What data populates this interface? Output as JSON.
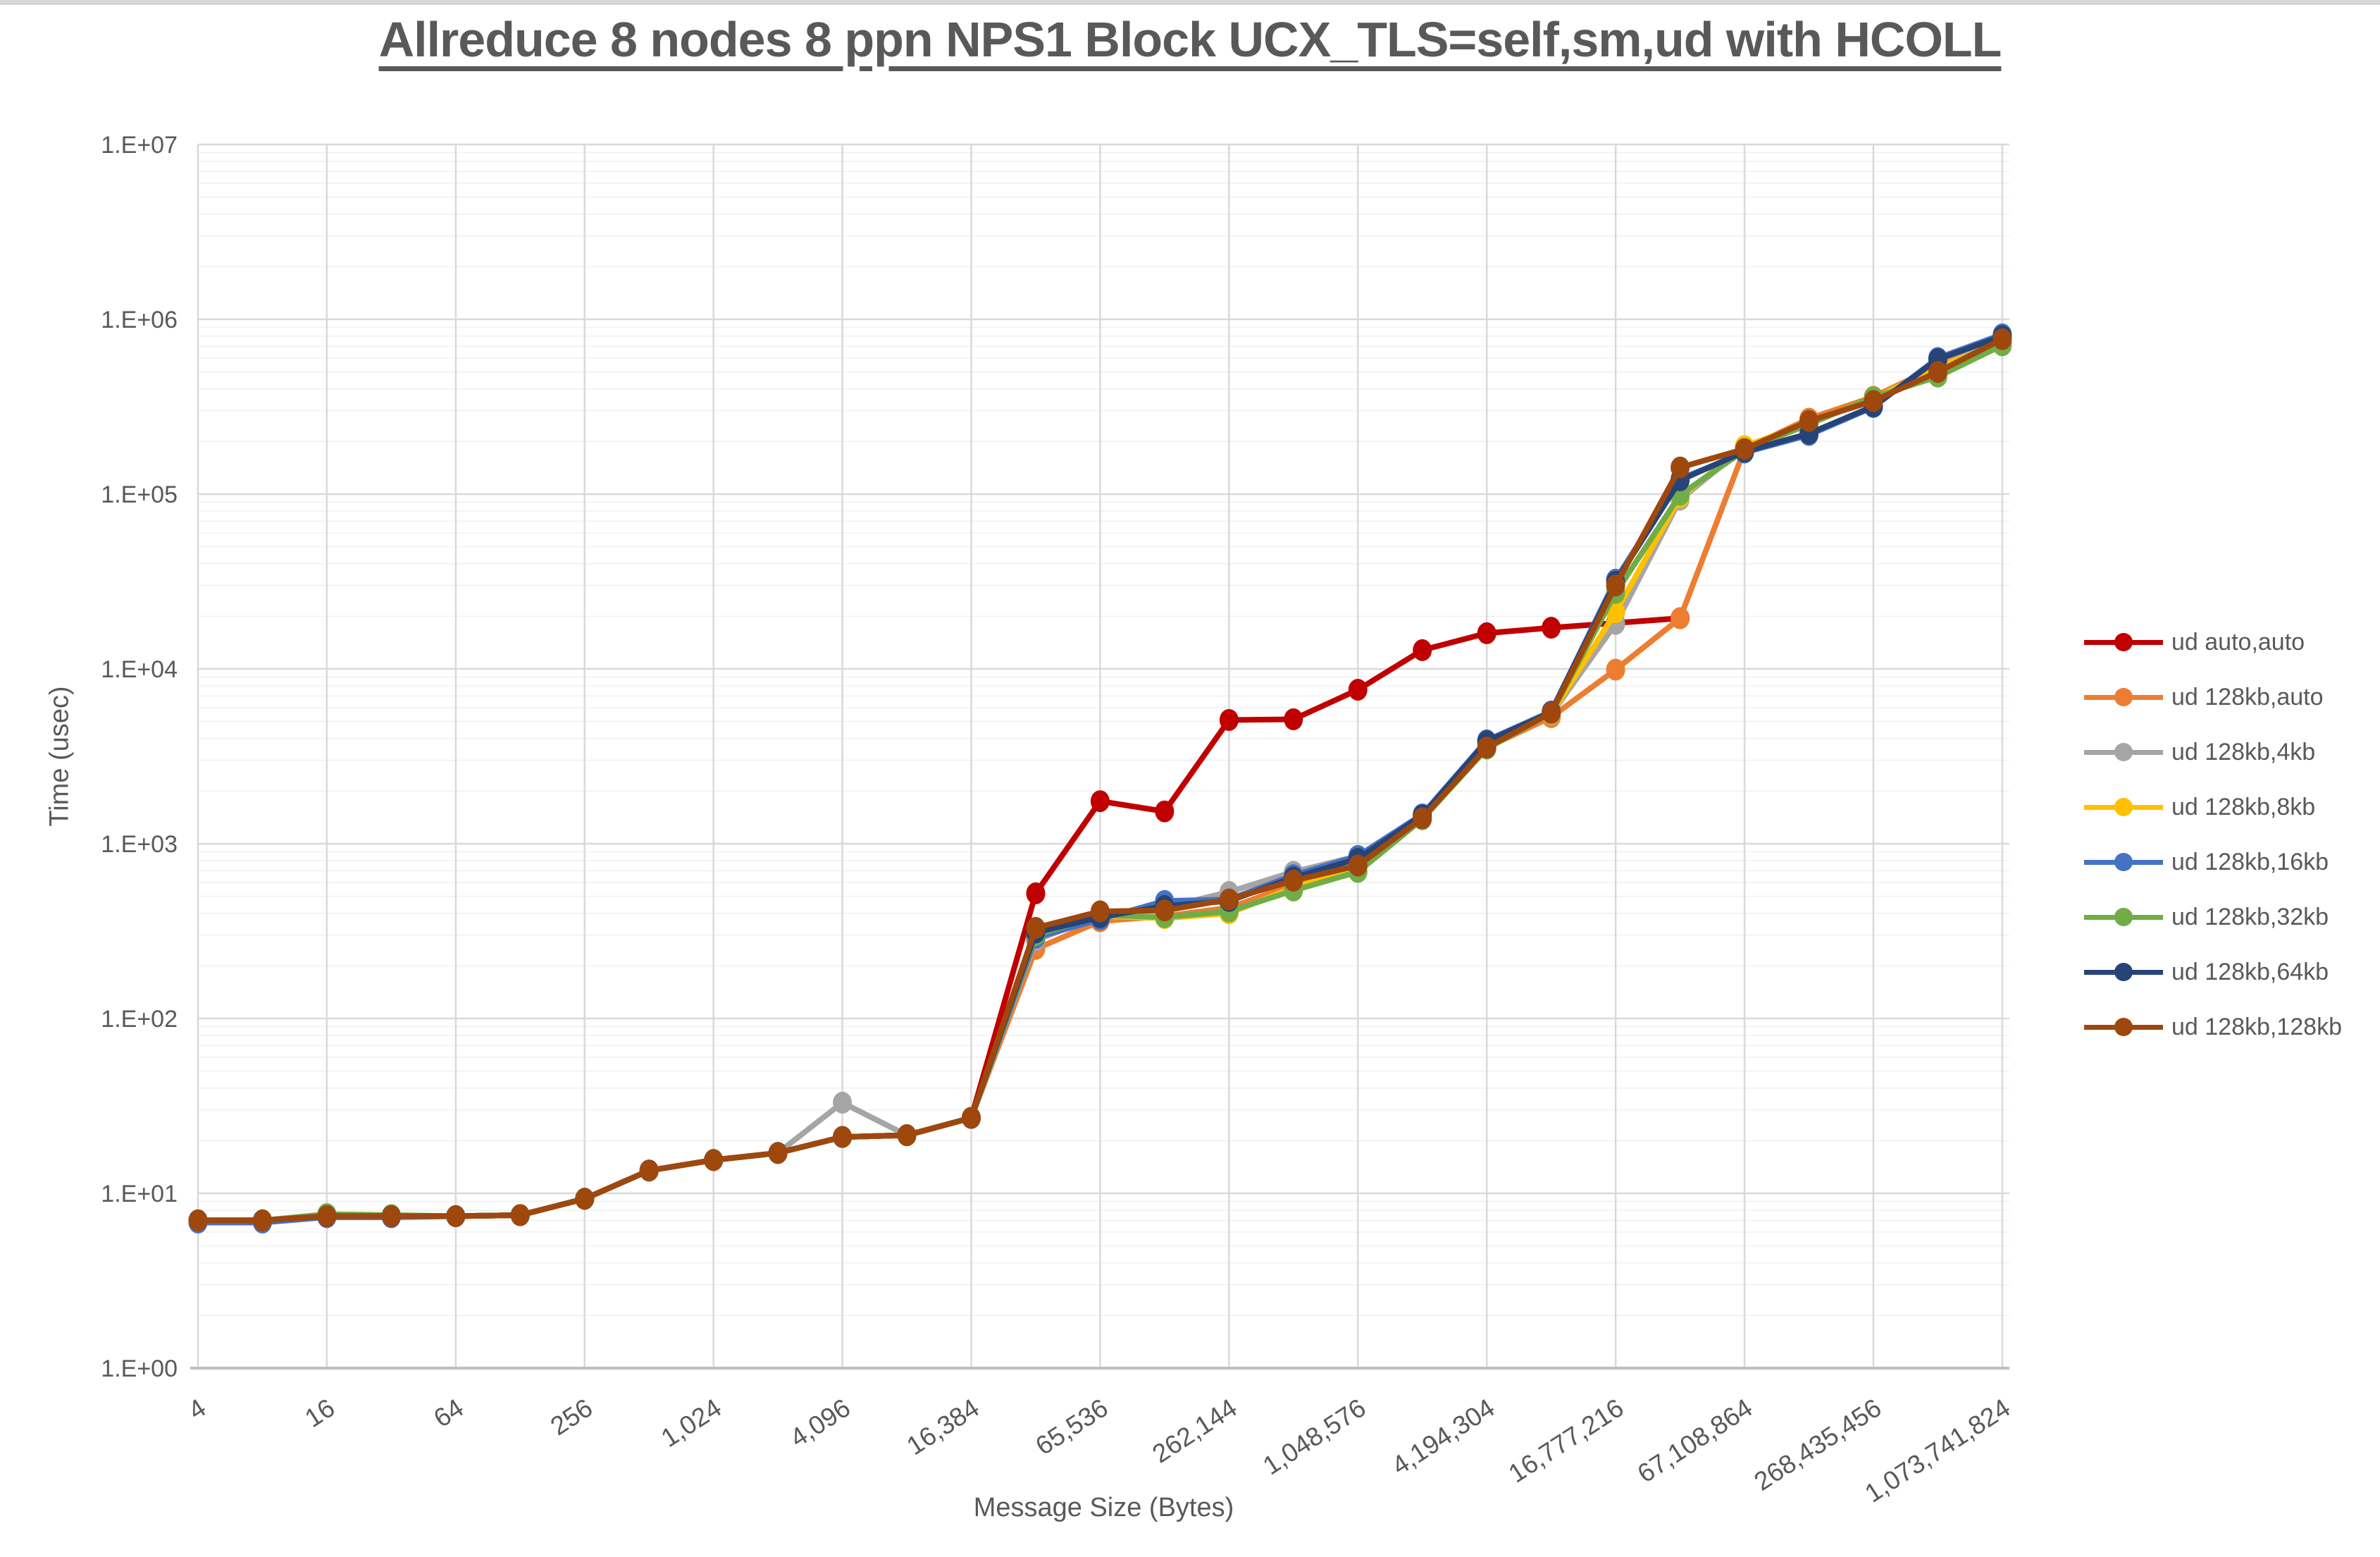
{
  "window": {
    "top_strip_color": "#d6d6d6"
  },
  "chart_data": {
    "type": "line",
    "title": "Allreduce 8 nodes 8 ppn NPS1 Block UCX_TLS=self,sm,ud with HCOLL",
    "xlabel": "Message Size (Bytes)",
    "ylabel": "Time (usec)",
    "x_scale": "log2",
    "y_scale": "log10",
    "ylim": [
      1,
      10000000
    ],
    "grid": {
      "h_major": true,
      "h_minor_log": true,
      "v_major_every_4x": true
    },
    "legend_position": "right",
    "y_tick_labels": [
      "1.E+00",
      "1.E+01",
      "1.E+02",
      "1.E+03",
      "1.E+04",
      "1.E+05",
      "1.E+06",
      "1.E+07"
    ],
    "x_tick_values": [
      4,
      16,
      64,
      256,
      1024,
      4096,
      16384,
      65536,
      262144,
      1048576,
      4194304,
      16777216,
      67108864,
      268435456,
      1073741824
    ],
    "x_tick_labels": [
      "4",
      "16",
      "64",
      "256",
      "1,024",
      "4,096",
      "16,384",
      "65,536",
      "262,144",
      "1,048,576",
      "4,194,304",
      "16,777,216",
      "67,108,864",
      "268,435,456",
      "1,073,741,824"
    ],
    "x": [
      4,
      8,
      16,
      32,
      64,
      128,
      256,
      512,
      1024,
      2048,
      4096,
      8192,
      16384,
      32768,
      65536,
      131072,
      262144,
      524288,
      1048576,
      2097152,
      4194304,
      8388608,
      16777216,
      33554432,
      67108864,
      134217728,
      268435456,
      536870912,
      1073741824
    ],
    "series": [
      {
        "name": "ud auto,auto",
        "color": "#C00000",
        "values": [
          7,
          7,
          7.4,
          7.4,
          7.4,
          7.5,
          9.3,
          13.5,
          15.5,
          17,
          21,
          21.5,
          27,
          520,
          1750,
          1530,
          5100,
          5150,
          7600,
          12800,
          16000,
          17200,
          18300,
          19500,
          null,
          null,
          null,
          null,
          null
        ]
      },
      {
        "name": "ud 128kb,auto",
        "color": "#ED7D31",
        "values": [
          7,
          7,
          7.4,
          7.4,
          7.4,
          7.5,
          9.3,
          13.5,
          15.5,
          17,
          21,
          21.5,
          27,
          250,
          360,
          385,
          430,
          580,
          730,
          1380,
          3550,
          5300,
          9900,
          19500,
          180000,
          270000,
          360000,
          540000,
          780000
        ]
      },
      {
        "name": "ud 128kb,4kb",
        "color": "#A5A5A5",
        "values": [
          7,
          7,
          7.4,
          7.4,
          7.4,
          7.5,
          9.3,
          13.5,
          15.5,
          17,
          33,
          21.5,
          27,
          280,
          390,
          430,
          530,
          690,
          850,
          1450,
          3700,
          5500,
          18100,
          93000,
          185000,
          258000,
          345000,
          530000,
          790000
        ]
      },
      {
        "name": "ud 128kb,8kb",
        "color": "#FFC000",
        "values": [
          7,
          7,
          7.4,
          7.4,
          7.4,
          7.5,
          9.3,
          13.5,
          15.5,
          17,
          21,
          21.5,
          27,
          290,
          385,
          375,
          400,
          560,
          740,
          1400,
          3600,
          5550,
          21100,
          96000,
          188000,
          255000,
          350000,
          535000,
          730000
        ]
      },
      {
        "name": "ud 128kb,16kb",
        "color": "#4472C4",
        "values": [
          6.8,
          6.8,
          7.3,
          7.3,
          7.4,
          7.5,
          9.3,
          13.5,
          15.5,
          17,
          21,
          21.5,
          27,
          290,
          370,
          470,
          480,
          660,
          850,
          1470,
          3900,
          5700,
          32400,
          122000,
          173000,
          218000,
          315000,
          600000,
          820000
        ]
      },
      {
        "name": "ud 128kb,32kb",
        "color": "#70AD47",
        "values": [
          7,
          7,
          7.6,
          7.5,
          7.4,
          7.5,
          9.3,
          13.5,
          15.5,
          17,
          21,
          21.5,
          27,
          300,
          390,
          380,
          410,
          540,
          690,
          1380,
          3500,
          5600,
          27200,
          99000,
          178000,
          251000,
          358000,
          470000,
          710000
        ]
      },
      {
        "name": "ud 128kb,64kb",
        "color": "#264478",
        "values": [
          7,
          7,
          7.4,
          7.4,
          7.4,
          7.5,
          9.3,
          13.5,
          15.5,
          17,
          21,
          21.5,
          27,
          310,
          380,
          440,
          470,
          640,
          820,
          1450,
          3850,
          5650,
          31500,
          120000,
          175000,
          222000,
          318000,
          590000,
          800000
        ]
      },
      {
        "name": "ud 128kb,128kb",
        "color": "#9E480E",
        "values": [
          7,
          7,
          7.4,
          7.4,
          7.4,
          7.5,
          9.3,
          13.5,
          15.5,
          17,
          21,
          21.5,
          27,
          330,
          410,
          415,
          480,
          615,
          750,
          1400,
          3550,
          5600,
          30000,
          142000,
          181000,
          262000,
          341000,
          500000,
          770000
        ]
      }
    ]
  }
}
